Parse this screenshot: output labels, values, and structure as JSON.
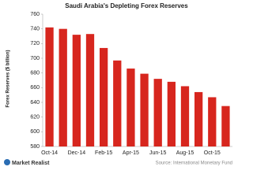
{
  "chart_data": {
    "type": "bar",
    "title": "Saudi Arabia's  Depleting  Forex  Reserves",
    "y_label": "Forex Reserves ($ billion)",
    "categories": [
      "Oct-14",
      null,
      "Dec-14",
      null,
      "Feb-15",
      null,
      "Apr-15",
      null,
      "Jun-15",
      null,
      "Aug-15",
      null,
      "Oct-15",
      null
    ],
    "values": [
      742,
      740,
      732,
      733,
      714,
      697,
      686,
      679,
      672,
      668,
      662,
      654,
      647,
      635
    ],
    "color": "#d7261e",
    "ylim": [
      580,
      760
    ],
    "yticks": [
      580,
      600,
      620,
      640,
      660,
      680,
      700,
      720,
      740,
      760
    ],
    "grid": false,
    "source": "Source: International Monetary Fund",
    "brand": "Market Realist"
  }
}
